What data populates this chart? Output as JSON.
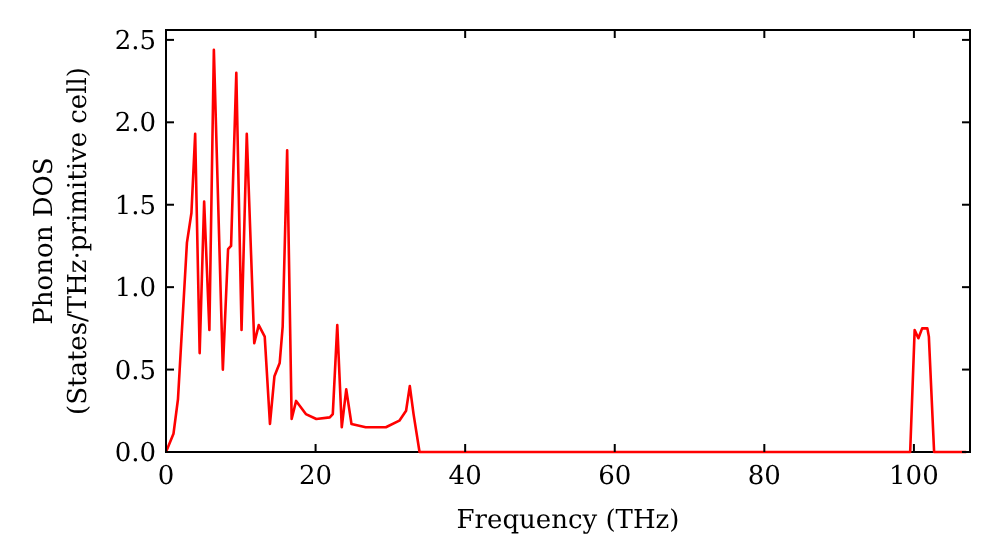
{
  "chart_data": {
    "type": "line",
    "xlabel": "Frequency (THz)",
    "ylabel": "Phonon DOS\n(States/THz·primitive cell)",
    "xlim": [
      0,
      107.5
    ],
    "ylim": [
      0,
      2.56
    ],
    "xticks": [
      0,
      20,
      40,
      60,
      80,
      100
    ],
    "yticks": [
      {
        "value": 0,
        "label": "0.0"
      },
      {
        "value": 0.5,
        "label": "0.5"
      },
      {
        "value": 1,
        "label": "1.0"
      },
      {
        "value": 1.5,
        "label": "1.5"
      },
      {
        "value": 2,
        "label": "2.0"
      },
      {
        "value": 2.5,
        "label": "2.5"
      }
    ],
    "grid": false,
    "marker": "none",
    "line_style": "solid",
    "series": [
      {
        "color": "#ff0000",
        "x": [
          0,
          1.0,
          1.6,
          2.8,
          3.4,
          3.9,
          4.5,
          5.1,
          5.8,
          6.4,
          7.6,
          8.3,
          8.7,
          9.4,
          10.1,
          10.8,
          11.8,
          12.4,
          13.2,
          13.9,
          14.5,
          15.2,
          15.6,
          16.2,
          16.8,
          17.4,
          18.7,
          20.1,
          21.9,
          22.3,
          22.9,
          23.5,
          24.1,
          24.8,
          26.7,
          29.4,
          31.2,
          32.1,
          32.6,
          33.1,
          33.9,
          99.5,
          100.1,
          100.6,
          101.1,
          101.8,
          102.0,
          102.7,
          107
        ],
        "values": [
          0,
          0.11,
          0.32,
          1.27,
          1.45,
          1.93,
          0.6,
          1.52,
          0.74,
          2.44,
          0.5,
          1.23,
          1.25,
          2.3,
          0.74,
          1.93,
          0.66,
          0.77,
          0.7,
          0.17,
          0.46,
          0.54,
          0.76,
          1.83,
          0.2,
          0.31,
          0.23,
          0.2,
          0.21,
          0.23,
          0.77,
          0.15,
          0.38,
          0.17,
          0.15,
          0.15,
          0.19,
          0.25,
          0.4,
          0.23,
          0,
          0,
          0.74,
          0.69,
          0.75,
          0.75,
          0.7,
          0,
          0
        ]
      }
    ]
  }
}
